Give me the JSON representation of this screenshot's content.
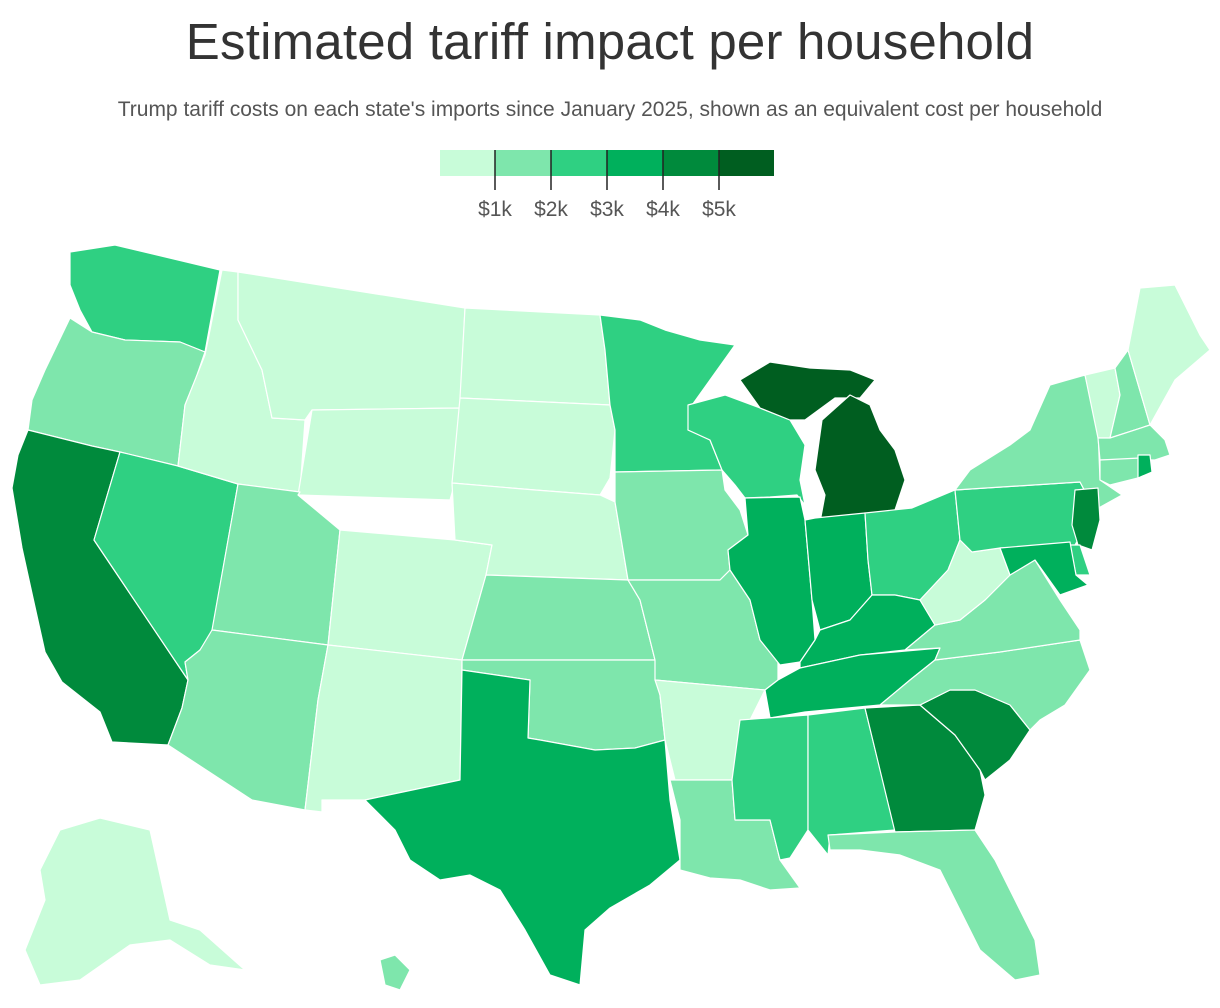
{
  "header": {
    "title": "Estimated tariff impact per household",
    "subtitle": "Trump tariff costs on each state's imports since January 2025, shown as an equivalent cost per household"
  },
  "legend": {
    "bins": [
      {
        "color": "#c8fcd9",
        "range": "< $1k"
      },
      {
        "color": "#7ee6ac",
        "range": "$1k–$2k"
      },
      {
        "color": "#2fd082",
        "range": "$2k–$3k"
      },
      {
        "color": "#00b05c",
        "range": "$3k–$4k"
      },
      {
        "color": "#008a3c",
        "range": "$4k–$5k"
      },
      {
        "color": "#005e20",
        "range": "> $5k"
      }
    ],
    "tick_labels": [
      "$1k",
      "$2k",
      "$3k",
      "$4k",
      "$5k"
    ]
  },
  "map_data": {
    "region": "United States",
    "states": [
      {
        "name": "Washington",
        "bin": 2
      },
      {
        "name": "Oregon",
        "bin": 1
      },
      {
        "name": "California",
        "bin": 4
      },
      {
        "name": "Nevada",
        "bin": 2
      },
      {
        "name": "Idaho",
        "bin": 0
      },
      {
        "name": "Montana",
        "bin": 0
      },
      {
        "name": "Wyoming",
        "bin": 0
      },
      {
        "name": "Utah",
        "bin": 1
      },
      {
        "name": "Arizona",
        "bin": 1
      },
      {
        "name": "Colorado",
        "bin": 0
      },
      {
        "name": "New Mexico",
        "bin": 0
      },
      {
        "name": "North Dakota",
        "bin": 0
      },
      {
        "name": "South Dakota",
        "bin": 0
      },
      {
        "name": "Nebraska",
        "bin": 0
      },
      {
        "name": "Kansas",
        "bin": 1
      },
      {
        "name": "Oklahoma",
        "bin": 1
      },
      {
        "name": "Texas",
        "bin": 3
      },
      {
        "name": "Minnesota",
        "bin": 2
      },
      {
        "name": "Iowa",
        "bin": 1
      },
      {
        "name": "Missouri",
        "bin": 1
      },
      {
        "name": "Arkansas",
        "bin": 0
      },
      {
        "name": "Louisiana",
        "bin": 1
      },
      {
        "name": "Wisconsin",
        "bin": 2
      },
      {
        "name": "Illinois",
        "bin": 3
      },
      {
        "name": "Michigan",
        "bin": 5
      },
      {
        "name": "Indiana",
        "bin": 3
      },
      {
        "name": "Ohio",
        "bin": 2
      },
      {
        "name": "Kentucky",
        "bin": 3
      },
      {
        "name": "Tennessee",
        "bin": 3
      },
      {
        "name": "Mississippi",
        "bin": 2
      },
      {
        "name": "Alabama",
        "bin": 2
      },
      {
        "name": "Georgia",
        "bin": 4
      },
      {
        "name": "Florida",
        "bin": 1
      },
      {
        "name": "South Carolina",
        "bin": 4
      },
      {
        "name": "North Carolina",
        "bin": 1
      },
      {
        "name": "Virginia",
        "bin": 1
      },
      {
        "name": "West Virginia",
        "bin": 0
      },
      {
        "name": "Pennsylvania",
        "bin": 2
      },
      {
        "name": "New York",
        "bin": 1
      },
      {
        "name": "Vermont",
        "bin": 0
      },
      {
        "name": "New Hampshire",
        "bin": 1
      },
      {
        "name": "Maine",
        "bin": 0
      },
      {
        "name": "Massachusetts",
        "bin": 1
      },
      {
        "name": "Rhode Island",
        "bin": 3
      },
      {
        "name": "Connecticut",
        "bin": 1
      },
      {
        "name": "New Jersey",
        "bin": 4
      },
      {
        "name": "Delaware",
        "bin": 2
      },
      {
        "name": "Maryland",
        "bin": 3
      },
      {
        "name": "Alaska",
        "bin": 0
      },
      {
        "name": "Hawaii",
        "bin": 1
      }
    ]
  }
}
